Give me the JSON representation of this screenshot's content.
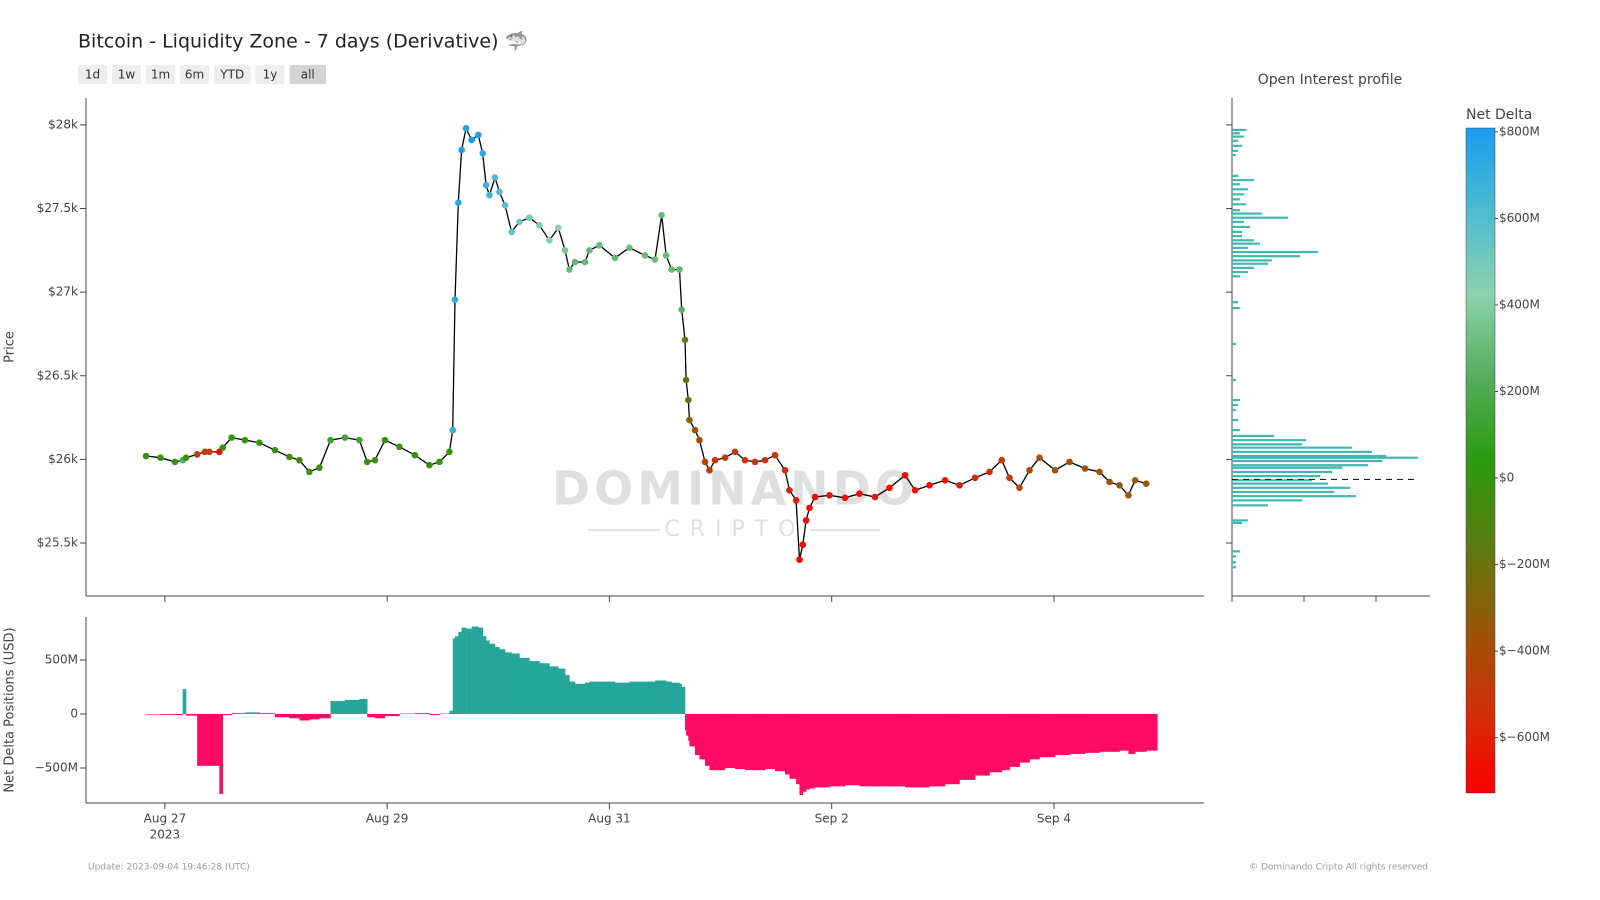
{
  "chart_data": [
    {
      "type": "line",
      "title": "Bitcoin - Liquidity Zone - 7 days (Derivative) 🦈",
      "range_buttons": [
        "1d",
        "1w",
        "1m",
        "6m",
        "YTD",
        "1y",
        "all"
      ],
      "active_range": "all",
      "ylabel": "Price",
      "watermark": [
        "DOMINANDO",
        "CRIPTO"
      ],
      "line_color": "#000000",
      "xlim": [
        238.29,
        248.35
      ],
      "ylim": [
        25183,
        28161
      ],
      "yticks": [
        {
          "value": 25500,
          "label": "$25.5k"
        },
        {
          "value": 26000,
          "label": "$26k"
        },
        {
          "value": 26500,
          "label": "$26.5k"
        },
        {
          "value": 27000,
          "label": "$27k"
        },
        {
          "value": 27500,
          "label": "$27.5k"
        },
        {
          "value": 28000,
          "label": "$28k"
        }
      ],
      "x": [
        238.83,
        238.96,
        239.09,
        239.16,
        239.19,
        239.29,
        239.36,
        239.4,
        239.49,
        239.52,
        239.6,
        239.72,
        239.85,
        239.99,
        240.12,
        240.21,
        240.3,
        240.39,
        240.49,
        240.62,
        240.75,
        240.82,
        240.89,
        240.98,
        241.11,
        241.25,
        241.38,
        241.47,
        241.56,
        241.59,
        241.61,
        241.64,
        241.67,
        241.71,
        241.76,
        241.82,
        241.86,
        241.89,
        241.92,
        241.97,
        242.01,
        242.06,
        242.12,
        242.19,
        242.28,
        242.37,
        242.46,
        242.54,
        242.6,
        242.64,
        242.69,
        242.78,
        242.82,
        242.91,
        243.05,
        243.18,
        243.32,
        243.41,
        243.47,
        243.51,
        243.56,
        243.63,
        243.65,
        243.68,
        243.69,
        243.71,
        243.72,
        243.77,
        243.81,
        243.86,
        243.9,
        243.95,
        244.04,
        244.13,
        244.22,
        244.31,
        244.4,
        244.49,
        244.58,
        244.62,
        244.68,
        244.71,
        244.74,
        244.77,
        244.8,
        244.85,
        244.98,
        245.12,
        245.25,
        245.39,
        245.52,
        245.66,
        245.75,
        245.88,
        246.02,
        246.15,
        246.29,
        246.42,
        246.53,
        246.6,
        246.69,
        246.78,
        246.87,
        247.01,
        247.14,
        247.28,
        247.41,
        247.5,
        247.59,
        247.67,
        247.73,
        247.83
      ],
      "values": [
        26020,
        26010,
        25985,
        25995,
        26010,
        26030,
        26045,
        26045,
        26045,
        26070,
        26130,
        26115,
        26100,
        26055,
        26015,
        25995,
        25925,
        25950,
        26115,
        26130,
        26115,
        25985,
        25995,
        26115,
        26075,
        26025,
        25965,
        25985,
        26045,
        26175,
        26955,
        27535,
        27850,
        27980,
        27910,
        27940,
        27830,
        27640,
        27580,
        27685,
        27600,
        27520,
        27360,
        27420,
        27445,
        27400,
        27310,
        27385,
        27250,
        27135,
        27180,
        27180,
        27250,
        27280,
        27205,
        27265,
        27220,
        27195,
        27460,
        27220,
        27135,
        27135,
        26895,
        26715,
        26475,
        26355,
        26235,
        26175,
        26115,
        25985,
        25935,
        25995,
        26010,
        26045,
        25995,
        25985,
        25995,
        26025,
        25935,
        25815,
        25755,
        25400,
        25490,
        25635,
        25710,
        25775,
        25785,
        25770,
        25795,
        25775,
        25830,
        25905,
        25815,
        25845,
        25875,
        25845,
        25890,
        25925,
        25995,
        25890,
        25830,
        25935,
        26010,
        25935,
        25985,
        25945,
        25925,
        25865,
        25845,
        25785,
        25875,
        25855
      ]
    },
    {
      "type": "bar",
      "ylabel": "Net Delta Positions (USD)",
      "positive_color": "#26a69a",
      "negative_color": "#ff0a64",
      "ylim": [
        -824000000,
        898000000
      ],
      "yticks": [
        {
          "value": -500000000,
          "label": "−500M"
        },
        0,
        {
          "value": 500000000,
          "label": "500M"
        }
      ],
      "xticks": [
        {
          "value": 239,
          "label": "Aug 27"
        },
        {
          "value": 241,
          "label": "Aug 29"
        },
        {
          "value": 243,
          "label": "Aug 31"
        },
        {
          "value": 245,
          "label": "Sep 2"
        },
        {
          "value": 247,
          "label": "Sep 4"
        }
      ],
      "xtick_sublabel": "2023",
      "values": [
        -5000000,
        -8000000,
        -10000000,
        230000000,
        -15000000,
        -480000000,
        -480000000,
        -480000000,
        -740000000,
        -10000000,
        10000000,
        15000000,
        10000000,
        -30000000,
        -40000000,
        -60000000,
        -50000000,
        -40000000,
        120000000,
        130000000,
        140000000,
        -30000000,
        -40000000,
        -20000000,
        5000000,
        10000000,
        -10000000,
        5000000,
        30000000,
        700000000,
        720000000,
        760000000,
        800000000,
        790000000,
        810000000,
        800000000,
        720000000,
        680000000,
        650000000,
        620000000,
        600000000,
        570000000,
        560000000,
        520000000,
        490000000,
        470000000,
        440000000,
        420000000,
        360000000,
        300000000,
        280000000,
        290000000,
        300000000,
        300000000,
        290000000,
        300000000,
        300000000,
        310000000,
        310000000,
        300000000,
        290000000,
        280000000,
        250000000,
        -150000000,
        -200000000,
        -250000000,
        -300000000,
        -380000000,
        -420000000,
        -480000000,
        -520000000,
        -520000000,
        -500000000,
        -510000000,
        -520000000,
        -520000000,
        -510000000,
        -530000000,
        -560000000,
        -600000000,
        -650000000,
        -750000000,
        -720000000,
        -700000000,
        -690000000,
        -680000000,
        -670000000,
        -660000000,
        -670000000,
        -670000000,
        -670000000,
        -680000000,
        -680000000,
        -670000000,
        -650000000,
        -610000000,
        -570000000,
        -540000000,
        -520000000,
        -490000000,
        -450000000,
        -420000000,
        -400000000,
        -380000000,
        -370000000,
        -360000000,
        -350000000,
        -350000000,
        -340000000,
        -370000000,
        -350000000,
        -340000000
      ]
    },
    {
      "type": "hbar",
      "title": "Open Interest profile",
      "color": "#3fb8b0",
      "xlim": [
        0,
        550
      ],
      "xticks": [
        0,
        200,
        400
      ],
      "last_price": 25880,
      "categories": [
        27970,
        27950,
        27930,
        27905,
        27875,
        27845,
        27820,
        27695,
        27670,
        27645,
        27615,
        27585,
        27555,
        27525,
        27490,
        27470,
        27445,
        27420,
        27390,
        27360,
        27335,
        27310,
        27290,
        27265,
        27240,
        27215,
        27190,
        27170,
        27145,
        27120,
        27095,
        26940,
        26905,
        26690,
        26475,
        26355,
        26325,
        26295,
        26235,
        26175,
        26140,
        26115,
        26090,
        26070,
        26045,
        26020,
        26010,
        25990,
        25965,
        25950,
        25925,
        25900,
        25875,
        25855,
        25830,
        25805,
        25780,
        25755,
        25725,
        25635,
        25620,
        25450,
        25420,
        25385,
        25355
      ],
      "values": [
        39,
        22,
        33,
        17,
        28,
        17,
        11,
        17,
        61,
        22,
        44,
        33,
        22,
        39,
        22,
        83,
        156,
        33,
        50,
        28,
        28,
        61,
        78,
        44,
        239,
        189,
        111,
        100,
        61,
        44,
        22,
        17,
        22,
        11,
        11,
        22,
        17,
        11,
        17,
        22,
        117,
        206,
        195,
        333,
        389,
        428,
        517,
        417,
        378,
        306,
        278,
        245,
        222,
        267,
        328,
        283,
        344,
        195,
        100,
        44,
        28,
        22,
        11,
        11,
        11
      ]
    },
    {
      "type": "colorbar",
      "title": "Net Delta",
      "clim": [
        -728000000,
        809000000
      ],
      "colors": [
        "#ff0000",
        "#d03008",
        "#985808",
        "#5a7c10",
        "#2a9a10",
        "#54ae5c",
        "#8cd2ac",
        "#4cbcd0",
        "#1a9cf0"
      ],
      "ticks": [
        {
          "value": -600000000,
          "label": "$−600M"
        },
        {
          "value": -400000000,
          "label": "$−400M"
        },
        {
          "value": -200000000,
          "label": "$−200M"
        },
        {
          "value": 0,
          "label": "$0"
        },
        {
          "value": 200000000,
          "label": "$200M"
        },
        {
          "value": 400000000,
          "label": "$400M"
        },
        {
          "value": 600000000,
          "label": "$600M"
        },
        {
          "value": 800000000,
          "label": "$800M"
        }
      ]
    }
  ],
  "footer": {
    "update": "Update: 2023-09-04 19:46:28 (UTC)",
    "copyright": "© Dominando Cripto All rights reserved"
  }
}
